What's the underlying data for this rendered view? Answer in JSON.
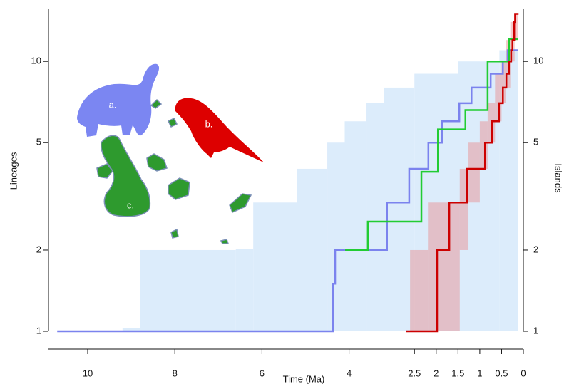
{
  "chart_data": {
    "type": "line",
    "xlabel": "Time (Ma)",
    "ylabel": "Lineages",
    "y2label": "Islands",
    "annotations": [
      "a.",
      "b.",
      "c."
    ],
    "xlim": [
      10.9,
      0
    ],
    "xticks": [
      10,
      8,
      6,
      4,
      2.5,
      2,
      1.5,
      1,
      0.5,
      0
    ],
    "ylim": [
      1,
      15.7
    ],
    "yticks": [
      1,
      2,
      5,
      10
    ],
    "log_y": true,
    "y2lim": [
      1,
      15.7
    ],
    "y2ticks": [
      1,
      2,
      5,
      10
    ],
    "bands": [
      {
        "color": "#dcecfb",
        "opacity": 1,
        "x": [
          9.2,
          8.8,
          6.6,
          6.2,
          5.2,
          4.5,
          4.1,
          3.6,
          3.2,
          2.5,
          1.5,
          0.55,
          0.12
        ],
        "upper": [
          1.03,
          2,
          2.02,
          3,
          4,
          5,
          6,
          7,
          8,
          9,
          10,
          11,
          11
        ],
        "lower": [
          1,
          1,
          1,
          1,
          1,
          1,
          1,
          1,
          1,
          1,
          1,
          1,
          1
        ]
      },
      {
        "color": "#e88a8a",
        "opacity": 0.45,
        "x": [
          2.6,
          2.19,
          1.46,
          1.26,
          1.0,
          0.82,
          0.65,
          0.5,
          0.4,
          0.3,
          0.2,
          0.12
        ],
        "upper": [
          2,
          3,
          4,
          5,
          6,
          7,
          9,
          10,
          12,
          14,
          15,
          15
        ],
        "lower": [
          1,
          1,
          2,
          3,
          4,
          5,
          6,
          7,
          8,
          10,
          12,
          12
        ]
      }
    ],
    "series": [
      {
        "color": "#7b83ee",
        "x": [
          10.7,
          4.37,
          4.32,
          3.13,
          2.62,
          2.18,
          1.87,
          1.47,
          1.19,
          0.75,
          0.47,
          0.36,
          0.12
        ],
        "values": [
          1,
          1.5,
          2,
          3,
          4,
          5,
          6,
          7,
          8,
          9,
          10,
          11,
          11
        ]
      },
      {
        "color": "#22cc33",
        "axis": "y2",
        "x": [
          4.09,
          3.57,
          2.34,
          1.96,
          1.33,
          0.82,
          0.33,
          0.12
        ],
        "values": [
          2,
          2.55,
          3.9,
          5.6,
          6.6,
          10,
          12.1,
          12.1
        ]
      },
      {
        "color": "#cc0000",
        "x": [
          2.7,
          1.98,
          1.7,
          1.29,
          0.88,
          0.72,
          0.56,
          0.47,
          0.39,
          0.33,
          0.28,
          0.25,
          0.21,
          0.19,
          0.11
        ],
        "values": [
          1,
          2,
          3,
          4,
          5,
          6,
          7,
          8,
          9,
          10,
          11,
          12,
          14,
          15,
          15
        ]
      }
    ]
  }
}
